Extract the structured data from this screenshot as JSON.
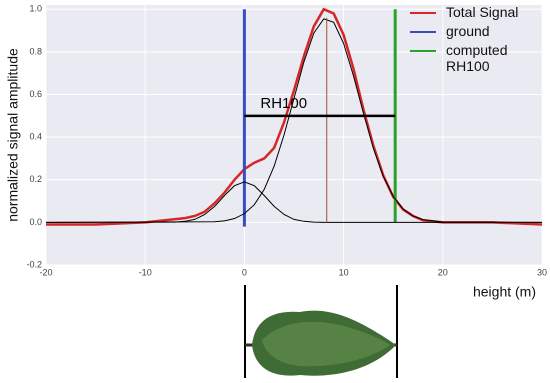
{
  "chart_data": {
    "type": "line",
    "xlabel": "height (m)",
    "ylabel": "normalized signal amplitude",
    "xlim": [
      -20,
      30
    ],
    "ylim": [
      -0.2,
      1.02
    ],
    "xticks": [
      -20,
      -10,
      0,
      10,
      20,
      30
    ],
    "yticks": [
      -0.2,
      {
        "value": 0,
        "label": "0.0"
      },
      0.2,
      0.4,
      0.6,
      0.8,
      {
        "value": 1,
        "label": "1.0"
      }
    ],
    "grid": true,
    "legend": "upper right",
    "series": [
      {
        "name": "Total Signal",
        "color": "#d62728",
        "x": [
          -20,
          -15,
          -10,
          -8,
          -6,
          -5,
          -4,
          -3,
          -2,
          -1,
          0,
          1,
          2,
          3,
          4,
          5,
          6,
          7,
          8,
          9,
          10,
          11,
          12,
          13,
          14,
          15,
          16,
          17,
          18,
          20,
          25,
          30
        ],
        "values": [
          -0.01,
          -0.01,
          0.0,
          0.01,
          0.02,
          0.03,
          0.05,
          0.09,
          0.14,
          0.2,
          0.25,
          0.28,
          0.3,
          0.35,
          0.47,
          0.62,
          0.78,
          0.92,
          1.0,
          0.98,
          0.88,
          0.72,
          0.53,
          0.36,
          0.22,
          0.12,
          0.06,
          0.03,
          0.01,
          0.0,
          0.0,
          -0.01
        ]
      },
      {
        "name": "ground",
        "color": "#3b4cc0",
        "x": [
          0,
          0
        ],
        "values": [
          -0.02,
          1.0
        ]
      },
      {
        "name": "computed RH100",
        "color": "#2ca02c",
        "x": [
          15.2,
          15.2
        ],
        "values": [
          0.0,
          1.0
        ]
      },
      {
        "color": "#000000",
        "x": [
          -20,
          -7,
          -6,
          -5,
          -4,
          -3,
          -2,
          -1,
          0,
          1,
          2,
          3,
          4,
          5,
          6,
          7,
          8,
          30
        ],
        "values": [
          0,
          0.001,
          0.005,
          0.014,
          0.037,
          0.075,
          0.126,
          0.172,
          0.19,
          0.172,
          0.126,
          0.075,
          0.037,
          0.014,
          0.005,
          0.001,
          0,
          0
        ]
      },
      {
        "color": "#000000",
        "x": [
          -20,
          -3,
          -2,
          -1,
          0,
          1,
          2,
          3,
          4,
          5,
          6,
          7,
          8,
          9,
          10,
          11,
          12,
          13,
          14,
          15,
          16,
          17,
          18,
          20,
          30
        ],
        "values": [
          0,
          0.003,
          0.007,
          0.018,
          0.041,
          0.083,
          0.155,
          0.264,
          0.411,
          0.582,
          0.753,
          0.888,
          0.955,
          0.939,
          0.84,
          0.687,
          0.512,
          0.348,
          0.216,
          0.122,
          0.063,
          0.03,
          0.013,
          0.002,
          0
        ]
      },
      {
        "color": "#a0522d",
        "x": [
          8.3,
          8.3
        ],
        "values": [
          0.0,
          0.96
        ]
      }
    ],
    "annotations": [
      {
        "text": "RH100",
        "y": 0.5,
        "x": [
          0,
          15.2
        ]
      }
    ]
  }
}
